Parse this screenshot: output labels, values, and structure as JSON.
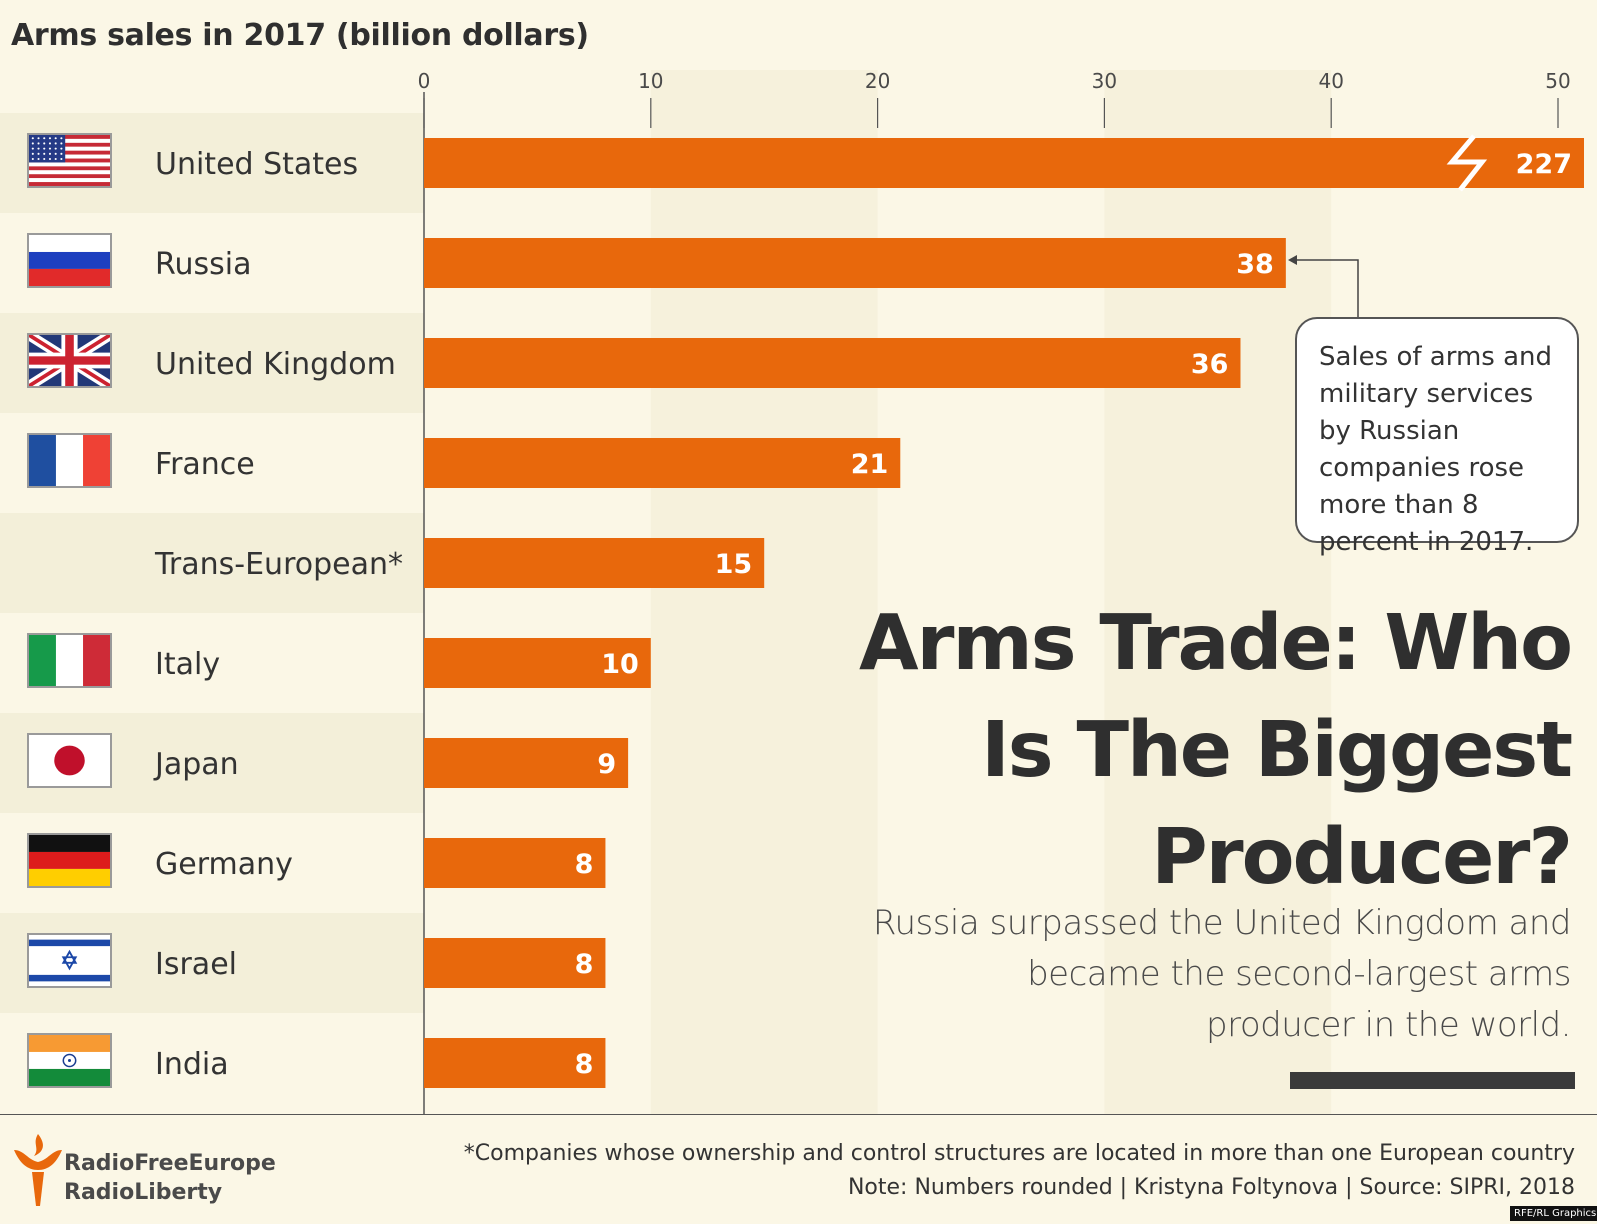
{
  "chart_data": {
    "type": "bar",
    "orientation": "horizontal",
    "title": "Arms sales in 2017 (billion dollars)",
    "categories": [
      "United States",
      "Russia",
      "United Kingdom",
      "France",
      "Trans-European*",
      "Italy",
      "Japan",
      "Germany",
      "Israel",
      "India"
    ],
    "values": [
      227,
      38,
      36,
      21,
      15,
      10,
      9,
      8,
      8,
      8
    ],
    "value_labels": [
      "227",
      "38",
      "36",
      "21",
      "15",
      "10",
      "9",
      "8",
      "8",
      "8"
    ],
    "axis_ticks": [
      "0",
      "10",
      "20",
      "30",
      "40",
      "50"
    ],
    "xlim": [
      0,
      51
    ],
    "axis_break": {
      "category": "United States",
      "note": "bar truncated with break mark"
    },
    "bar_color": "#e8680c",
    "grid": false,
    "legend": "none"
  },
  "flags": [
    {
      "country": "United States",
      "icon": "us-flag-icon"
    },
    {
      "country": "Russia",
      "icon": "russia-flag-icon"
    },
    {
      "country": "United Kingdom",
      "icon": "uk-flag-icon"
    },
    {
      "country": "France",
      "icon": "france-flag-icon"
    },
    {
      "country": "Trans-European*",
      "icon": ""
    },
    {
      "country": "Italy",
      "icon": "italy-flag-icon"
    },
    {
      "country": "Japan",
      "icon": "japan-flag-icon"
    },
    {
      "country": "Germany",
      "icon": "germany-flag-icon"
    },
    {
      "country": "Israel",
      "icon": "israel-flag-icon"
    },
    {
      "country": "India",
      "icon": "india-flag-icon"
    }
  ],
  "callout": {
    "text": "Sales of arms and military services by Russian companies rose more than 8 percent in 2017."
  },
  "headline": {
    "title": "Arms Trade: Who Is The Biggest Producer?",
    "subtitle": "Russia surpassed the United Kingdom and became the second-largest arms producer in the world."
  },
  "footer": {
    "footnote": "*Companies whose ownership and control structures are located in more than one European country",
    "note": "Note: Numbers rounded | Kristyna Foltynova | Source: SIPRI, 2018",
    "logo_line1": "RadioFreeEurope",
    "logo_line2": "RadioLiberty",
    "credit": "RFE/RL Graphics"
  },
  "colors": {
    "background": "#fbf7e6",
    "row_band": "#f3efd9",
    "bar": "#e8680c",
    "text": "#333333"
  }
}
